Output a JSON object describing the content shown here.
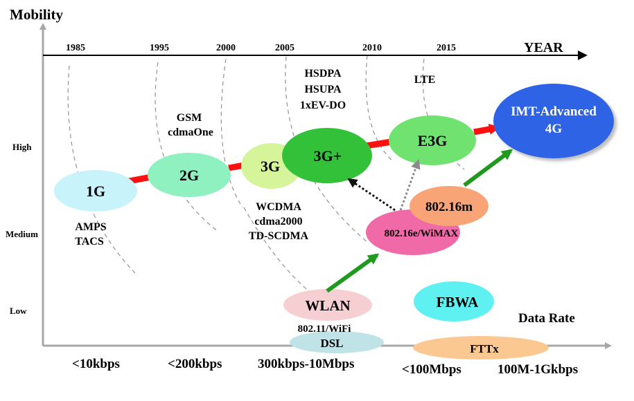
{
  "axes": {
    "y_title": "Mobility",
    "x_top_title": "YEAR",
    "x_bottom_title": "Data Rate",
    "mobility_levels": [
      "High",
      "Medium",
      "Low"
    ],
    "years": [
      "1985",
      "1995",
      "2000",
      "2005",
      "2010",
      "2015"
    ],
    "data_rates": [
      "<10kbps",
      "<200kbps",
      "300kbps-10Mbps",
      "<100Mbps",
      "100M-1Gkbps"
    ]
  },
  "nodes": {
    "g1": "1G",
    "g2": "2G",
    "g3": "3G",
    "g3plus": "3G+",
    "e3g": "E3G",
    "imt_line1": "IMT-Advanced",
    "imt_line2": "4G",
    "wimax": "802.16e/WiMAX",
    "m80216": "802.16m",
    "wlan": "WLAN",
    "fbwa": "FBWA",
    "dsl": "DSL",
    "fttx": "FTTx"
  },
  "labels": {
    "amps": "AMPS",
    "tacs": "TACS",
    "gsm": "GSM",
    "cdmaone": "cdmaOne",
    "wcdma": "WCDMA",
    "cdma2000": "cdma2000",
    "tdscdma": "TD-SCDMA",
    "hsdpa": "HSDPA",
    "hsupa": "HSUPA",
    "evdo": "1xEV-DO",
    "lte": "LTE",
    "wifi": "802.11/WiFi"
  },
  "colors": {
    "g1": "#c9f3fb",
    "g2": "#8ff0c0",
    "g3": "#d6f59a",
    "g3plus": "#34c13a",
    "e3g": "#6fe26f",
    "imt": "#2f63e6",
    "wimax": "#f06aa8",
    "m80216": "#f9a477",
    "wlan": "#f6cfd2",
    "fbwa": "#5ff0f2",
    "dsl": "#bfe3e6",
    "fttx": "#fbc892",
    "red_arrow": "#ff0f0f",
    "green_arrow": "#1f9a1f",
    "axis": "#a7a7a7"
  }
}
